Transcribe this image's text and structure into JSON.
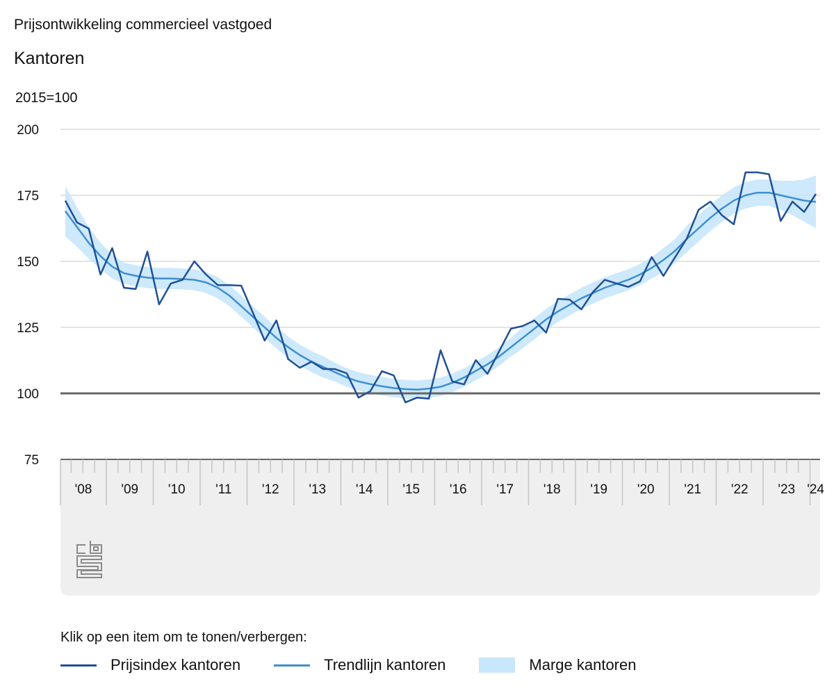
{
  "header": {
    "title": "Prijsontwikkeling commercieel vastgoed",
    "subtitle": "Kantoren"
  },
  "chart_data": {
    "type": "line",
    "unit_label": "2015=100",
    "ylim": [
      75,
      200
    ],
    "yticks": [
      75,
      100,
      125,
      150,
      175,
      200
    ],
    "baseline": 100,
    "grid": true,
    "x_start": "2008Q1",
    "x_end": "2024Q1",
    "year_labels": [
      "'08",
      "'09",
      "'10",
      "'11",
      "'12",
      "'13",
      "'14",
      "'15",
      "'16",
      "'17",
      "'18",
      "'19",
      "'20",
      "'21",
      "'22",
      "'23",
      "'24"
    ],
    "series": [
      {
        "name": "Prijsindex kantoren",
        "color": "#1f4f97",
        "values": [
          173,
          164.7,
          162.4,
          145,
          155,
          140,
          139.5,
          153.7,
          133.7,
          141.6,
          143,
          150,
          145,
          141,
          141,
          140.8,
          130.5,
          120,
          127.6,
          113,
          109.7,
          112,
          109.2,
          109.2,
          107.6,
          98.4,
          100.8,
          108.4,
          106.8,
          96.6,
          98.4,
          98,
          116.3,
          104.5,
          103.4,
          112.6,
          107.4,
          116,
          124.5,
          125.5,
          127.6,
          123,
          135.8,
          135.5,
          131.8,
          138.4,
          143,
          141.6,
          140.3,
          142.4,
          151.6,
          144.5,
          151.6,
          158.7,
          169.5,
          172.6,
          167.4,
          164,
          183.7,
          183.7,
          183,
          165.3,
          172.6,
          168.7,
          175.5
        ]
      },
      {
        "name": "Trendlijn kantoren",
        "color": "#3d8fd1",
        "values": [
          169,
          163,
          157,
          152,
          148,
          145.5,
          144.5,
          143.8,
          143.5,
          143.5,
          143.3,
          143,
          142,
          140,
          137,
          133,
          129,
          125,
          121,
          117.5,
          114.5,
          112,
          110,
          108,
          106,
          104.5,
          103.5,
          102.7,
          102,
          101.6,
          101.4,
          101.8,
          102.5,
          104,
          106,
          108.5,
          111,
          114,
          117.5,
          121,
          124.5,
          128,
          131,
          133.5,
          136,
          138,
          140,
          141.5,
          143,
          145,
          147.5,
          150.5,
          154,
          158.5,
          162.5,
          166.5,
          170,
          173,
          175,
          176,
          176,
          175,
          174,
          173,
          172.5
        ]
      },
      {
        "name": "Marge kantoren",
        "color": "#c8e7fb",
        "halfwidth": [
          9.5,
          7.5,
          6,
          5,
          4.5,
          4,
          4,
          4,
          4,
          4,
          4,
          4,
          4,
          4,
          4,
          4,
          4,
          4,
          4,
          4,
          4,
          4,
          4,
          3.5,
          3.5,
          3.5,
          3.5,
          3.5,
          3.5,
          3.5,
          3.5,
          3.5,
          3.5,
          3.5,
          3.5,
          3.5,
          3.5,
          3.5,
          3.5,
          4,
          4,
          4,
          4,
          4,
          4,
          4,
          4,
          4,
          4,
          4,
          4,
          4.5,
          4.5,
          5,
          5,
          5,
          5,
          5,
          5,
          5,
          5,
          5.5,
          6.5,
          8,
          10
        ]
      }
    ]
  },
  "legend": {
    "title": "Klik op een item om te tonen/verbergen:",
    "items": [
      "Prijsindex kantoren",
      "Trendlijn kantoren",
      "Marge kantoren"
    ]
  },
  "logo": "cbs"
}
